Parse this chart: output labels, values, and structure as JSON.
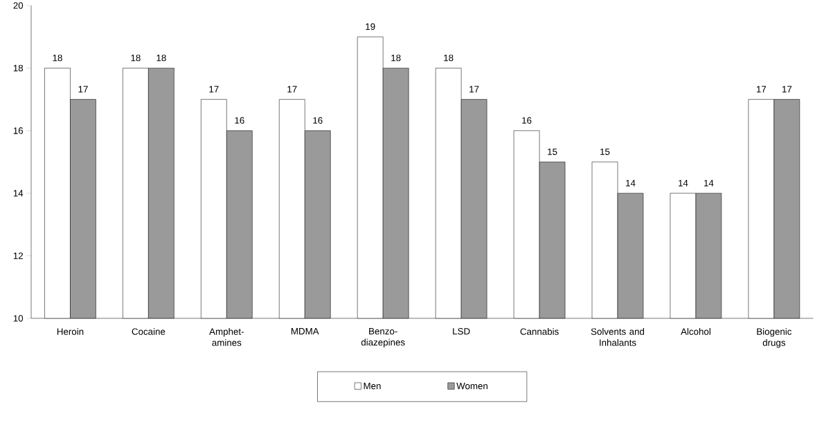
{
  "chart_data": {
    "type": "bar",
    "categories": [
      "Heroin",
      "Cocaine",
      "Amphet-amines",
      "MDMA",
      "Benzo-diazepines",
      "LSD",
      "Cannabis",
      "Solvents and Inhalants",
      "Alcohol",
      "Biogenic drugs"
    ],
    "series": [
      {
        "name": "Men",
        "color": "#ffffff",
        "values": [
          18,
          18,
          17,
          17,
          19,
          18,
          16,
          15,
          14,
          17
        ]
      },
      {
        "name": "Women",
        "color": "#9a9a9a",
        "values": [
          17,
          18,
          16,
          16,
          18,
          17,
          15,
          14,
          14,
          17
        ]
      }
    ],
    "ylim": [
      10,
      20
    ],
    "yticks": [
      10,
      12,
      14,
      16,
      18,
      20
    ],
    "data_labels": true,
    "grid": false,
    "legend": "bottom"
  }
}
